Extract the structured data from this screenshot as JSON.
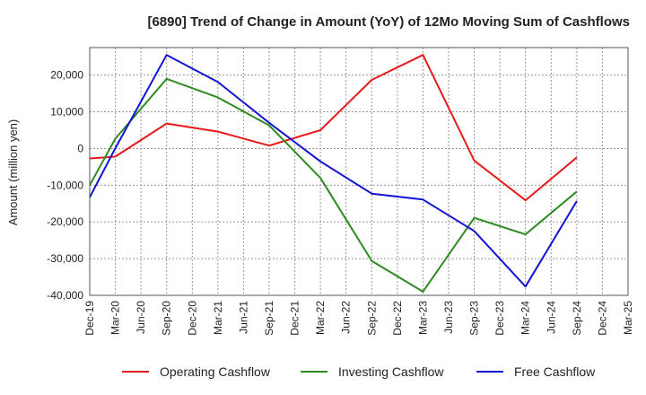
{
  "chart_data": {
    "type": "line",
    "title": "[6890]  Trend of Change in Amount (YoY) of 12Mo Moving Sum of Cashflows",
    "xlabel": "",
    "ylabel": "Amount (million yen)",
    "ylim": [
      -40000,
      27500
    ],
    "yticks": [
      -40000,
      -30000,
      -20000,
      -10000,
      0,
      10000,
      20000
    ],
    "ytick_labels": [
      "-40,000",
      "-30,000",
      "-20,000",
      "-10,000",
      "0",
      "10,000",
      "20,000"
    ],
    "categories": [
      "Dec-19",
      "Mar-20",
      "Jun-20",
      "Sep-20",
      "Dec-20",
      "Mar-21",
      "Jun-21",
      "Sep-21",
      "Dec-21",
      "Mar-22",
      "Jun-22",
      "Sep-22",
      "Dec-22",
      "Mar-23",
      "Jun-23",
      "Sep-23",
      "Dec-23",
      "Mar-24",
      "Jun-24",
      "Sep-24",
      "Dec-24",
      "Mar-25"
    ],
    "grid": true,
    "legend_position": "bottom",
    "series": [
      {
        "name": "Operating Cashflow",
        "color": "#e8191b",
        "values": [
          -2700,
          -2200,
          null,
          6800,
          null,
          4600,
          null,
          800,
          null,
          5000,
          null,
          18700,
          null,
          25500,
          null,
          -3300,
          null,
          -14100,
          null,
          -2400,
          null,
          null
        ]
      },
      {
        "name": "Investing Cashflow",
        "color": "#2e8b22",
        "values": [
          -10000,
          2700,
          null,
          19000,
          null,
          13900,
          null,
          6300,
          null,
          -8000,
          null,
          -30600,
          null,
          -39000,
          null,
          -18900,
          null,
          -23400,
          null,
          -11700,
          null,
          null
        ]
      },
      {
        "name": "Free Cashflow",
        "color": "#1313d6",
        "values": [
          -13300,
          100,
          null,
          25500,
          null,
          18100,
          null,
          7000,
          null,
          -3500,
          null,
          -12300,
          null,
          -13900,
          null,
          -22500,
          null,
          -37600,
          null,
          -14300,
          null,
          null
        ]
      }
    ]
  }
}
